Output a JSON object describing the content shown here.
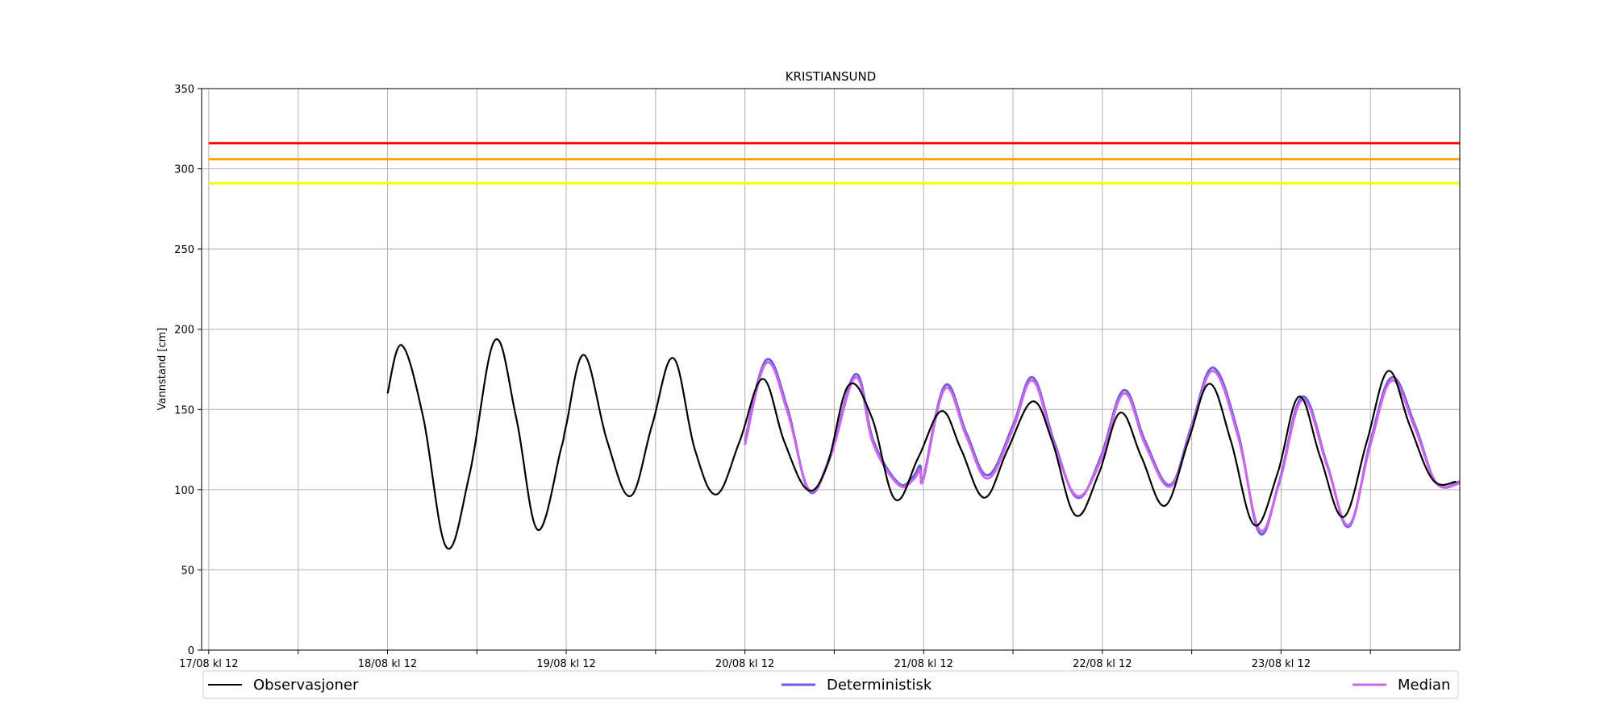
{
  "chart_data": {
    "type": "line",
    "title": "KRISTIANSUND",
    "xlabel": "",
    "ylabel": "Vannstand [cm]",
    "ylim": [
      0,
      350
    ],
    "yticks": [
      0,
      50,
      100,
      150,
      200,
      250,
      300,
      350
    ],
    "xlim": [
      -0.04,
      7.0
    ],
    "xticks": [
      0,
      1,
      2,
      3,
      4,
      5,
      6
    ],
    "xtick_labels": [
      "17/08 kl 12",
      "18/08 kl 12",
      "19/08 kl 12",
      "20/08 kl 12",
      "21/08 kl 12",
      "22/08 kl 12",
      "23/08 kl 12"
    ],
    "x_unit": "days after 17/08 kl 12",
    "grid": true,
    "thresholds": [
      {
        "value": 316,
        "color": "#ff0000"
      },
      {
        "value": 306,
        "color": "#ffa500"
      },
      {
        "value": 291,
        "color": "#ffff00"
      }
    ],
    "legend": {
      "placement": "below",
      "entries": [
        "Observasjoner",
        "Deterministisk",
        "Median"
      ]
    },
    "series": [
      {
        "name": "Observasjoner",
        "color": "#000000",
        "x": [
          1.0,
          1.08,
          1.2,
          1.33,
          1.46,
          1.6,
          1.72,
          1.84,
          1.97,
          2.0,
          2.1,
          2.23,
          2.36,
          2.48,
          2.6,
          2.72,
          2.84,
          2.97,
          3.1,
          3.22,
          3.35,
          3.46,
          3.58,
          3.71,
          3.84,
          3.97,
          4.1,
          4.21,
          4.34,
          4.47,
          4.61,
          4.72,
          4.85,
          4.98,
          5.1,
          5.22,
          5.35,
          5.48,
          5.6,
          5.72,
          5.85,
          5.98,
          6.1,
          6.22,
          6.35,
          6.48,
          6.6,
          6.72,
          6.85,
          6.98
        ],
        "y": [
          160,
          190,
          145,
          64,
          110,
          193,
          145,
          75,
          125,
          140,
          184,
          130,
          96,
          140,
          182,
          125,
          97,
          130,
          169,
          130,
          100,
          115,
          165,
          145,
          94,
          120,
          149,
          125,
          95,
          125,
          155,
          130,
          84,
          110,
          148,
          120,
          90,
          130,
          166,
          130,
          78,
          110,
          158,
          120,
          83,
          130,
          174,
          140,
          106,
          105
        ]
      },
      {
        "name": "Deterministisk",
        "color": "#6a5fd6",
        "x": [
          3.0,
          3.12,
          3.24,
          3.36,
          3.48,
          3.62,
          3.72,
          3.86,
          3.94,
          3.98,
          4.0,
          4.12,
          4.24,
          4.36,
          4.5,
          4.61,
          4.73,
          4.86,
          4.99,
          5.12,
          5.24,
          5.38,
          5.5,
          5.62,
          5.76,
          5.88,
          5.99,
          6.12,
          6.26,
          6.38,
          6.5,
          6.62,
          6.75,
          6.87,
          7.0
        ],
        "y": [
          130,
          181,
          150,
          99,
          122,
          172,
          130,
          104,
          108,
          115,
          108,
          165,
          135,
          109,
          140,
          170,
          130,
          95,
          120,
          162,
          130,
          103,
          140,
          176,
          135,
          73,
          105,
          158,
          115,
          77,
          130,
          170,
          140,
          104,
          105
        ]
      },
      {
        "name": "Median",
        "color": "#cc66ee",
        "x": [
          3.0,
          3.12,
          3.24,
          3.36,
          3.48,
          3.62,
          3.72,
          3.86,
          3.94,
          3.98,
          4.0,
          4.12,
          4.24,
          4.36,
          4.5,
          4.61,
          4.73,
          4.86,
          4.99,
          5.12,
          5.24,
          5.38,
          5.5,
          5.62,
          5.76,
          5.88,
          5.99,
          6.12,
          6.26,
          6.38,
          6.5,
          6.62,
          6.75,
          6.87,
          7.0
        ],
        "y": [
          128,
          179,
          148,
          100,
          121,
          170,
          128,
          103,
          106,
          112,
          107,
          163,
          133,
          107,
          138,
          168,
          128,
          96,
          118,
          160,
          128,
          102,
          138,
          174,
          133,
          75,
          104,
          156,
          114,
          78,
          128,
          168,
          138,
          104,
          104
        ]
      }
    ]
  }
}
